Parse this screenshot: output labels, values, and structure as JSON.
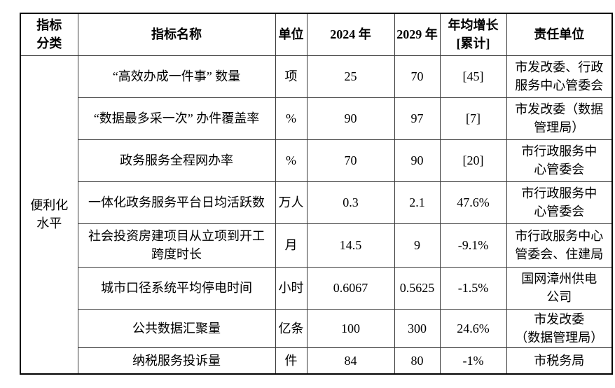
{
  "colors": {
    "background": "#ffffff",
    "border_outer": "#000000",
    "border_inner": "#3a3a3a",
    "text": "#000000"
  },
  "table": {
    "headers": {
      "category": "指标\n分类",
      "name": "指标名称",
      "unit": "单位",
      "y2024": "2024 年",
      "y2029": "2029 年",
      "growth": "年均增长\n[累计]",
      "owner": "责任单位"
    },
    "category_label": "便利化\n水平",
    "rows": [
      {
        "name": "“高效办成一件事” 数量",
        "unit": "项",
        "y2024": "25",
        "y2029": "70",
        "growth": "[45]",
        "owner": "市发改委、行政\n服务中心管委会"
      },
      {
        "name": "“数据最多采一次” 办件覆盖率",
        "unit": "%",
        "y2024": "90",
        "y2029": "97",
        "growth": "[7]",
        "owner": "市发改委（数据\n管理局）"
      },
      {
        "name": "政务服务全程网办率",
        "unit": "%",
        "y2024": "70",
        "y2029": "90",
        "growth": "[20]",
        "owner": "市行政服务中\n心管委会"
      },
      {
        "name": "一体化政务服务平台日均活跃数",
        "unit": "万人",
        "y2024": "0.3",
        "y2029": "2.1",
        "growth": "47.6%",
        "owner": "市行政服务中\n心管委会"
      },
      {
        "name": "社会投资房建项目从立项到开工\n跨度时长",
        "unit": "月",
        "y2024": "14.5",
        "y2029": "9",
        "growth": "-9.1%",
        "owner": "市行政服务中心\n管委会、住建局"
      },
      {
        "name": "城市口径系统平均停电时间",
        "unit": "小时",
        "y2024": "0.6067",
        "y2029": "0.5625",
        "growth": "-1.5%",
        "owner": "国网漳州供电\n公司"
      },
      {
        "name": "公共数据汇聚量",
        "unit": "亿条",
        "y2024": "100",
        "y2029": "300",
        "growth": "24.6%",
        "owner": "市发改委\n（数据管理局）"
      },
      {
        "name": "纳税服务投诉量",
        "unit": "件",
        "y2024": "84",
        "y2029": "80",
        "growth": "-1%",
        "owner": "市税务局"
      }
    ]
  }
}
